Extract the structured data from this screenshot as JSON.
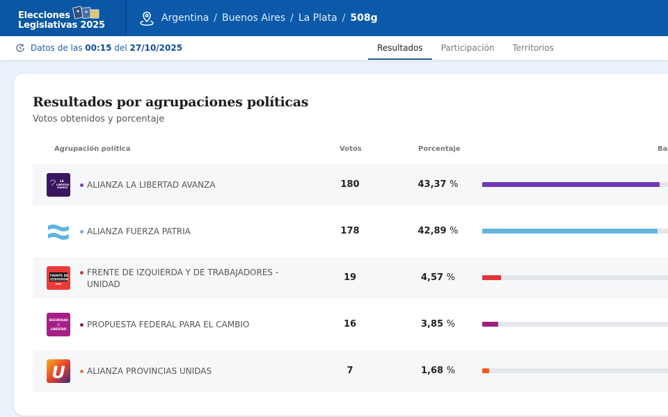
{
  "header": {
    "brand_line1": "Elecciones",
    "brand_line2": "Legislativas 2025",
    "brand_icon": "ballot-cards-icon",
    "location_icon": "map-pin-icon",
    "breadcrumb": [
      "Argentina",
      "Buenos Aires",
      "La Plata",
      "508g"
    ],
    "separator": "/"
  },
  "subbar": {
    "update_icon": "refresh-clock-icon",
    "prefix": "Datos de las",
    "time": "00:15",
    "mid": "del",
    "date": "27/10/2025",
    "tabs": [
      {
        "label": "Resultados",
        "active": true
      },
      {
        "label": "Participación",
        "active": false
      },
      {
        "label": "Territorios",
        "active": false
      }
    ]
  },
  "card": {
    "title": "Resultados por agrupaciones políticas",
    "subtitle": "Votos obtenidos y porcentaje",
    "columns": {
      "party": "Agrupación política",
      "votes": "Votos",
      "percent": "Porcentaje",
      "bar": "Ba"
    },
    "rows": [
      {
        "name": "ALIANZA LA LIBERTAD AVANZA",
        "votes": "180",
        "percent_text": "43,37",
        "percent": 43.37,
        "color": "#6f3ab5",
        "dot": "#6b3fa0",
        "logo": "la-libertad-avanza-logo"
      },
      {
        "name": "ALIANZA FUERZA PATRIA",
        "votes": "178",
        "percent_text": "42,89",
        "percent": 42.89,
        "color": "#66b3de",
        "dot": "#7fa9cf",
        "logo": "fuerza-patria-logo"
      },
      {
        "name": "FRENTE DE IZQUIERDA Y DE TRABAJADORES - UNIDAD",
        "votes": "19",
        "percent_text": "4,57",
        "percent": 4.57,
        "color": "#e03336",
        "dot": "#c0393b",
        "logo": "frente-de-izquierda-logo"
      },
      {
        "name": "PROPUESTA FEDERAL PARA EL CAMBIO",
        "votes": "16",
        "percent_text": "3,85",
        "percent": 3.85,
        "color": "#a0207f",
        "dot": "#7a2460",
        "logo": "seguridad-y-libertad-logo"
      },
      {
        "name": "ALIANZA PROVINCIAS UNIDAS",
        "votes": "7",
        "percent_text": "1,68",
        "percent": 1.68,
        "color": "#ef5a1e",
        "dot": "#e07b3d",
        "logo": "provincias-unidas-logo"
      }
    ],
    "percent_unit": "%"
  },
  "logos": {
    "lla_text": [
      "LA",
      "LIBERTAD",
      "AVANZA"
    ],
    "fit_text": [
      "FRENTE DE",
      "IZQUIERDA"
    ],
    "syl_text": [
      "SEGURIDAD",
      "LIBERTAD"
    ],
    "pu_text": "U"
  }
}
